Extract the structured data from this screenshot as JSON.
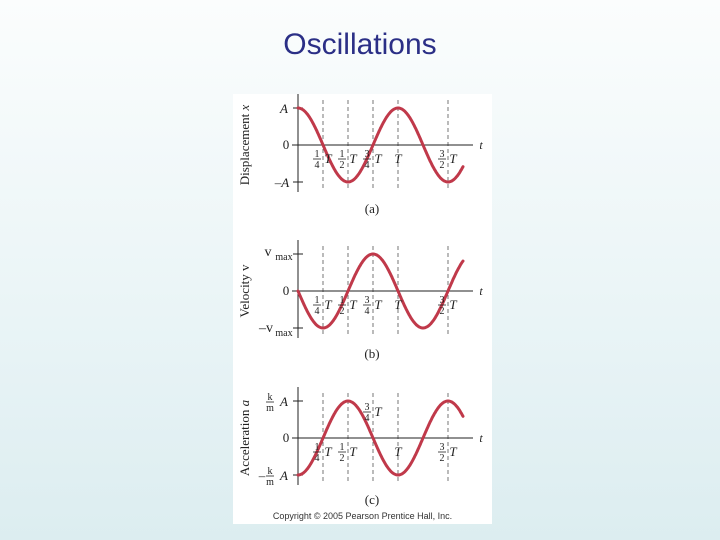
{
  "slide": {
    "title": "Oscillations"
  },
  "copyright": "Copyright © 2005 Pearson Prentice Hall, Inc.",
  "curve_color": "#c0394a",
  "panels": [
    {
      "caption": "(a)",
      "y_axis_label": "Displacement",
      "y_axis_var": "x",
      "top_label": "A",
      "zero_label": "0",
      "bottom_label": "–A",
      "x_axis_var": "t",
      "function": "cos",
      "frac_labels": [
        {
          "num": "1",
          "den": "4",
          "var": "T"
        },
        {
          "num": "1",
          "den": "2",
          "var": "T"
        },
        {
          "num": "3",
          "den": "4",
          "var": "T"
        },
        {
          "num": "",
          "den": "",
          "var": "T"
        },
        {
          "num": "3",
          "den": "2",
          "var": "T"
        }
      ]
    },
    {
      "caption": "(b)",
      "y_axis_label": "Velocity v",
      "top_label": "vmax",
      "zero_label": "0",
      "bottom_label": "–vmax",
      "x_axis_var": "t",
      "function": "-sin",
      "frac_labels": [
        {
          "num": "1",
          "den": "4",
          "var": "T"
        },
        {
          "num": "1",
          "den": "2",
          "var": "T"
        },
        {
          "num": "3",
          "den": "4",
          "var": "T"
        },
        {
          "num": "",
          "den": "",
          "var": "T"
        },
        {
          "num": "3",
          "den": "2",
          "var": "T"
        }
      ]
    },
    {
      "caption": "(c)",
      "y_axis_label": "Acceleration",
      "y_axis_var": "a",
      "top_label": "A",
      "top_frac": {
        "num": "k",
        "den": "m"
      },
      "zero_label": "0",
      "bottom_label": "A",
      "bottom_frac": {
        "num": "k",
        "den": "m"
      },
      "bottom_sign": "–",
      "x_axis_var": "t",
      "function": "-cos",
      "frac_labels": [
        {
          "num": "1",
          "den": "4",
          "var": "T"
        },
        {
          "num": "1",
          "den": "2",
          "var": "T"
        },
        {
          "num": "3",
          "den": "4",
          "var": "T"
        },
        {
          "num": "",
          "den": "",
          "var": "T"
        },
        {
          "num": "3",
          "den": "2",
          "var": "T"
        }
      ]
    }
  ]
}
